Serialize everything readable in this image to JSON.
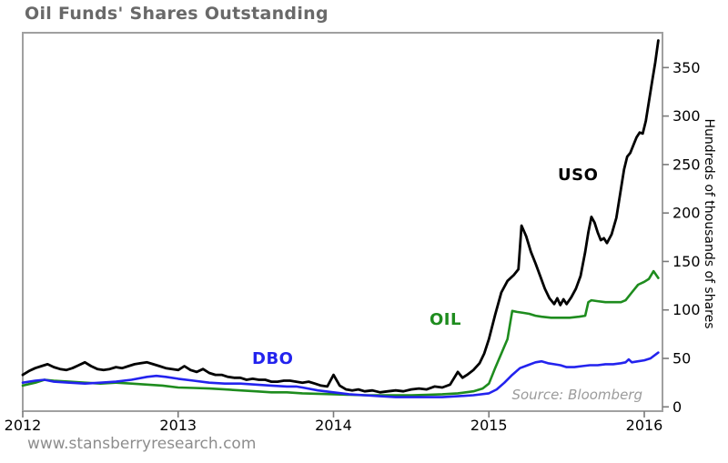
{
  "title": "Oil Funds' Shares Outstanding",
  "footer": {
    "url": "www.stansberryresearch.com"
  },
  "chart_data": {
    "type": "line",
    "title": "Oil Funds' Shares Outstanding",
    "xlabel": "",
    "ylabel": "Hundreds of thousands of shares",
    "source": "Source: Bloomberg",
    "x_ticks": [
      2012,
      2013,
      2014,
      2015,
      2016
    ],
    "y_ticks": [
      0,
      50,
      100,
      150,
      200,
      250,
      300,
      350
    ],
    "x_range": [
      2012,
      2016.12
    ],
    "ylim": [
      0,
      385
    ],
    "grid": false,
    "legend": "inline-labels",
    "frame_color": "#a0a0a0",
    "tick_color": "#7a7a7a",
    "series": [
      {
        "name": "USO",
        "label": "USO",
        "color": "#000000",
        "points": [
          [
            2012.0,
            33
          ],
          [
            2012.04,
            37
          ],
          [
            2012.08,
            40
          ],
          [
            2012.12,
            42
          ],
          [
            2012.16,
            44
          ],
          [
            2012.2,
            41
          ],
          [
            2012.24,
            39
          ],
          [
            2012.28,
            38
          ],
          [
            2012.32,
            40
          ],
          [
            2012.36,
            43
          ],
          [
            2012.4,
            46
          ],
          [
            2012.44,
            42
          ],
          [
            2012.48,
            39
          ],
          [
            2012.52,
            38
          ],
          [
            2012.56,
            39
          ],
          [
            2012.6,
            41
          ],
          [
            2012.64,
            40
          ],
          [
            2012.68,
            42
          ],
          [
            2012.72,
            44
          ],
          [
            2012.76,
            45
          ],
          [
            2012.8,
            46
          ],
          [
            2012.84,
            44
          ],
          [
            2012.88,
            42
          ],
          [
            2012.92,
            40
          ],
          [
            2012.96,
            39
          ],
          [
            2013.0,
            38
          ],
          [
            2013.04,
            42
          ],
          [
            2013.08,
            38
          ],
          [
            2013.12,
            36
          ],
          [
            2013.16,
            39
          ],
          [
            2013.2,
            35
          ],
          [
            2013.24,
            33
          ],
          [
            2013.28,
            33
          ],
          [
            2013.32,
            31
          ],
          [
            2013.36,
            30
          ],
          [
            2013.4,
            30
          ],
          [
            2013.44,
            28
          ],
          [
            2013.48,
            29
          ],
          [
            2013.52,
            28
          ],
          [
            2013.56,
            28
          ],
          [
            2013.6,
            26
          ],
          [
            2013.64,
            26
          ],
          [
            2013.68,
            27
          ],
          [
            2013.72,
            27
          ],
          [
            2013.76,
            26
          ],
          [
            2013.8,
            25
          ],
          [
            2013.84,
            26
          ],
          [
            2013.88,
            24
          ],
          [
            2013.92,
            22
          ],
          [
            2013.96,
            21
          ],
          [
            2014.0,
            33
          ],
          [
            2014.04,
            22
          ],
          [
            2014.08,
            18
          ],
          [
            2014.12,
            17
          ],
          [
            2014.16,
            18
          ],
          [
            2014.2,
            16
          ],
          [
            2014.25,
            17
          ],
          [
            2014.3,
            15
          ],
          [
            2014.35,
            16
          ],
          [
            2014.4,
            17
          ],
          [
            2014.45,
            16
          ],
          [
            2014.5,
            18
          ],
          [
            2014.55,
            19
          ],
          [
            2014.6,
            18
          ],
          [
            2014.65,
            21
          ],
          [
            2014.7,
            20
          ],
          [
            2014.75,
            23
          ],
          [
            2014.8,
            36
          ],
          [
            2014.83,
            30
          ],
          [
            2014.86,
            33
          ],
          [
            2014.9,
            38
          ],
          [
            2014.94,
            45
          ],
          [
            2014.97,
            55
          ],
          [
            2015.0,
            70
          ],
          [
            2015.04,
            95
          ],
          [
            2015.08,
            118
          ],
          [
            2015.12,
            130
          ],
          [
            2015.16,
            136
          ],
          [
            2015.19,
            142
          ],
          [
            2015.21,
            187
          ],
          [
            2015.24,
            176
          ],
          [
            2015.27,
            160
          ],
          [
            2015.3,
            148
          ],
          [
            2015.33,
            135
          ],
          [
            2015.36,
            122
          ],
          [
            2015.39,
            112
          ],
          [
            2015.42,
            106
          ],
          [
            2015.44,
            112
          ],
          [
            2015.46,
            105
          ],
          [
            2015.48,
            111
          ],
          [
            2015.5,
            106
          ],
          [
            2015.53,
            113
          ],
          [
            2015.56,
            122
          ],
          [
            2015.59,
            135
          ],
          [
            2015.62,
            160
          ],
          [
            2015.64,
            180
          ],
          [
            2015.66,
            196
          ],
          [
            2015.68,
            190
          ],
          [
            2015.7,
            180
          ],
          [
            2015.72,
            172
          ],
          [
            2015.74,
            174
          ],
          [
            2015.76,
            169
          ],
          [
            2015.79,
            178
          ],
          [
            2015.82,
            195
          ],
          [
            2015.85,
            225
          ],
          [
            2015.87,
            245
          ],
          [
            2015.89,
            258
          ],
          [
            2015.91,
            262
          ],
          [
            2015.93,
            270
          ],
          [
            2015.95,
            278
          ],
          [
            2015.97,
            283
          ],
          [
            2015.99,
            282
          ],
          [
            2016.01,
            295
          ],
          [
            2016.03,
            315
          ],
          [
            2016.05,
            335
          ],
          [
            2016.07,
            355
          ],
          [
            2016.09,
            378
          ]
        ]
      },
      {
        "name": "OIL",
        "label": "OIL",
        "color": "#1e8c1e",
        "points": [
          [
            2012.0,
            22
          ],
          [
            2012.08,
            25
          ],
          [
            2012.14,
            28
          ],
          [
            2012.2,
            27
          ],
          [
            2012.3,
            26
          ],
          [
            2012.4,
            25
          ],
          [
            2012.5,
            24
          ],
          [
            2012.6,
            25
          ],
          [
            2012.7,
            24
          ],
          [
            2012.8,
            23
          ],
          [
            2012.9,
            22
          ],
          [
            2013.0,
            20
          ],
          [
            2013.1,
            19.5
          ],
          [
            2013.2,
            19
          ],
          [
            2013.3,
            18
          ],
          [
            2013.4,
            17
          ],
          [
            2013.5,
            16
          ],
          [
            2013.6,
            15
          ],
          [
            2013.7,
            15
          ],
          [
            2013.8,
            14
          ],
          [
            2013.9,
            13.5
          ],
          [
            2014.0,
            13
          ],
          [
            2014.1,
            12.5
          ],
          [
            2014.2,
            12
          ],
          [
            2014.3,
            12
          ],
          [
            2014.4,
            12
          ],
          [
            2014.5,
            12
          ],
          [
            2014.6,
            12.5
          ],
          [
            2014.7,
            13
          ],
          [
            2014.8,
            14
          ],
          [
            2014.9,
            16
          ],
          [
            2014.96,
            19
          ],
          [
            2015.0,
            24
          ],
          [
            2015.04,
            40
          ],
          [
            2015.08,
            55
          ],
          [
            2015.12,
            70
          ],
          [
            2015.15,
            99
          ],
          [
            2015.18,
            98
          ],
          [
            2015.22,
            97
          ],
          [
            2015.26,
            96
          ],
          [
            2015.3,
            94
          ],
          [
            2015.34,
            93
          ],
          [
            2015.4,
            92
          ],
          [
            2015.46,
            92
          ],
          [
            2015.52,
            92
          ],
          [
            2015.58,
            93
          ],
          [
            2015.62,
            94
          ],
          [
            2015.64,
            108
          ],
          [
            2015.66,
            110
          ],
          [
            2015.7,
            109
          ],
          [
            2015.75,
            108
          ],
          [
            2015.8,
            108
          ],
          [
            2015.85,
            108
          ],
          [
            2015.88,
            110
          ],
          [
            2015.92,
            118
          ],
          [
            2015.96,
            126
          ],
          [
            2016.0,
            129
          ],
          [
            2016.03,
            132
          ],
          [
            2016.06,
            140
          ],
          [
            2016.09,
            133
          ]
        ]
      },
      {
        "name": "DBO",
        "label": "DBO",
        "color": "#2323ee",
        "points": [
          [
            2012.0,
            25
          ],
          [
            2012.08,
            27
          ],
          [
            2012.14,
            28
          ],
          [
            2012.2,
            26
          ],
          [
            2012.3,
            25
          ],
          [
            2012.4,
            24
          ],
          [
            2012.5,
            25
          ],
          [
            2012.6,
            26
          ],
          [
            2012.7,
            28
          ],
          [
            2012.8,
            31
          ],
          [
            2012.86,
            32
          ],
          [
            2012.92,
            31
          ],
          [
            2013.0,
            29
          ],
          [
            2013.1,
            27
          ],
          [
            2013.2,
            25
          ],
          [
            2013.3,
            24
          ],
          [
            2013.4,
            24
          ],
          [
            2013.5,
            23
          ],
          [
            2013.6,
            22
          ],
          [
            2013.7,
            21
          ],
          [
            2013.76,
            21
          ],
          [
            2013.8,
            20
          ],
          [
            2013.9,
            17
          ],
          [
            2014.0,
            15
          ],
          [
            2014.1,
            13
          ],
          [
            2014.2,
            12
          ],
          [
            2014.3,
            11
          ],
          [
            2014.4,
            10
          ],
          [
            2014.5,
            10
          ],
          [
            2014.6,
            10
          ],
          [
            2014.7,
            10
          ],
          [
            2014.8,
            11
          ],
          [
            2014.9,
            12
          ],
          [
            2015.0,
            14
          ],
          [
            2015.05,
            18
          ],
          [
            2015.1,
            25
          ],
          [
            2015.15,
            33
          ],
          [
            2015.2,
            40
          ],
          [
            2015.25,
            43
          ],
          [
            2015.3,
            46
          ],
          [
            2015.34,
            47
          ],
          [
            2015.38,
            45
          ],
          [
            2015.42,
            44
          ],
          [
            2015.46,
            43
          ],
          [
            2015.5,
            41
          ],
          [
            2015.55,
            41
          ],
          [
            2015.6,
            42
          ],
          [
            2015.65,
            43
          ],
          [
            2015.7,
            43
          ],
          [
            2015.75,
            44
          ],
          [
            2015.8,
            44
          ],
          [
            2015.85,
            45
          ],
          [
            2015.88,
            46
          ],
          [
            2015.9,
            49
          ],
          [
            2015.92,
            46
          ],
          [
            2015.96,
            47
          ],
          [
            2016.0,
            48
          ],
          [
            2016.04,
            50
          ],
          [
            2016.09,
            56
          ]
        ]
      }
    ]
  }
}
